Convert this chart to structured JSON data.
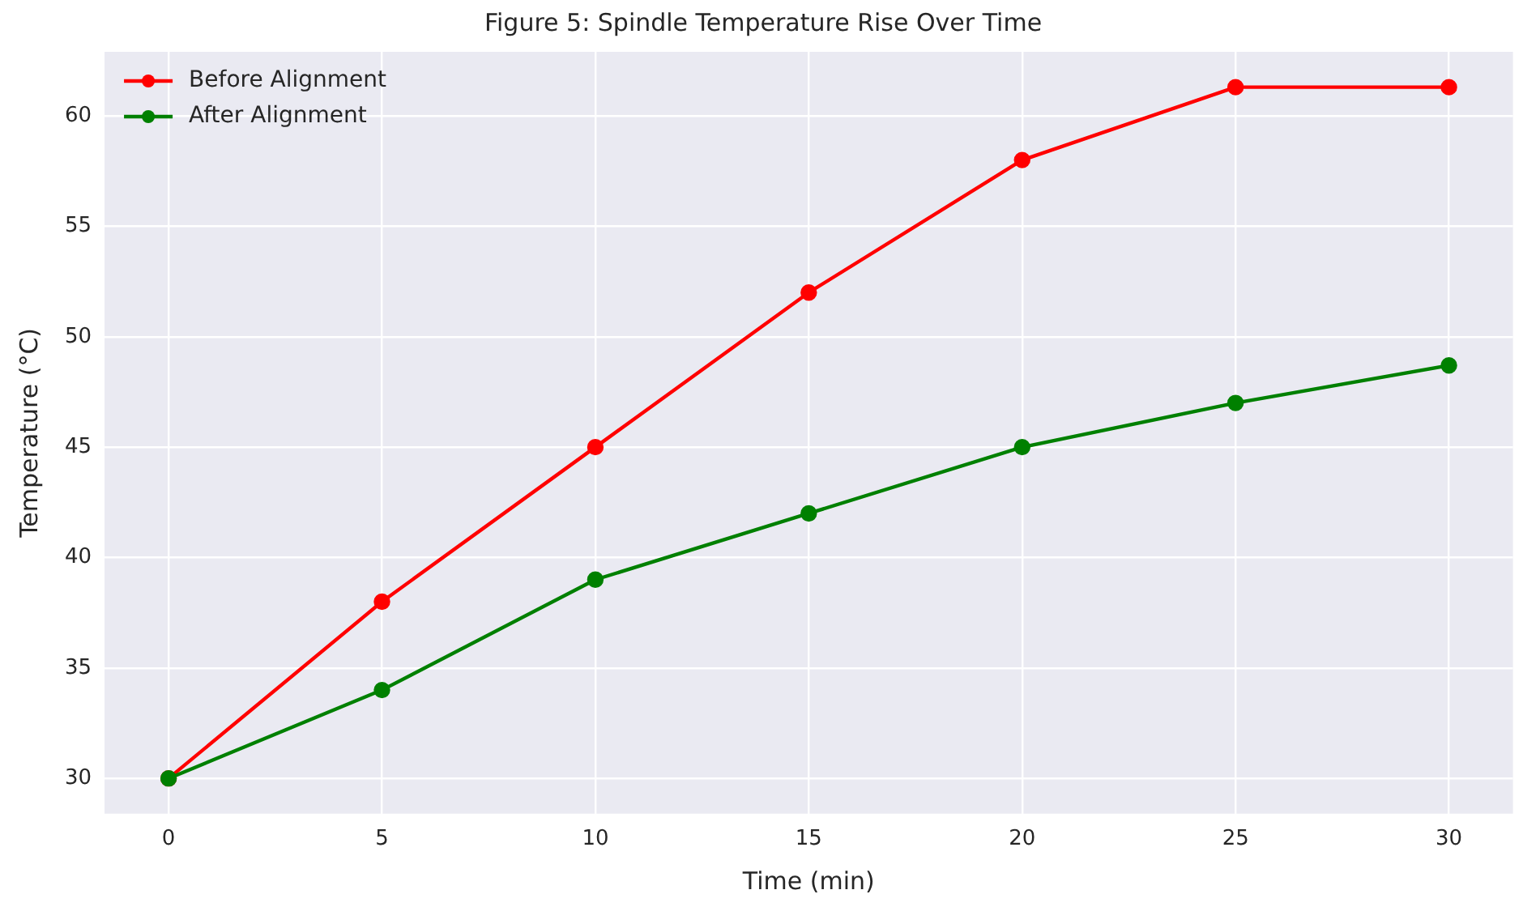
{
  "chart_data": {
    "type": "line",
    "title": "Figure 5: Spindle Temperature Rise Over Time",
    "xlabel": "Time (min)",
    "ylabel": "Temperature (°C)",
    "x": [
      0,
      5,
      10,
      15,
      20,
      25,
      30
    ],
    "series": [
      {
        "name": "Before Alignment",
        "color": "#ff0000",
        "values": [
          30,
          38,
          45,
          52,
          58,
          61.3,
          61.3
        ]
      },
      {
        "name": "After Alignment",
        "color": "#008000",
        "values": [
          30,
          34,
          39,
          42,
          45,
          47,
          48.7
        ]
      }
    ],
    "xlim": [
      -1.5,
      31.5
    ],
    "xticks": [
      0,
      5,
      10,
      15,
      20,
      25,
      30
    ],
    "ylim": [
      28.4,
      62.9
    ],
    "yticks": [
      30,
      35,
      40,
      45,
      50,
      55,
      60
    ],
    "grid": true,
    "legend": "top left",
    "marker": "circle",
    "line_style": "solid"
  }
}
